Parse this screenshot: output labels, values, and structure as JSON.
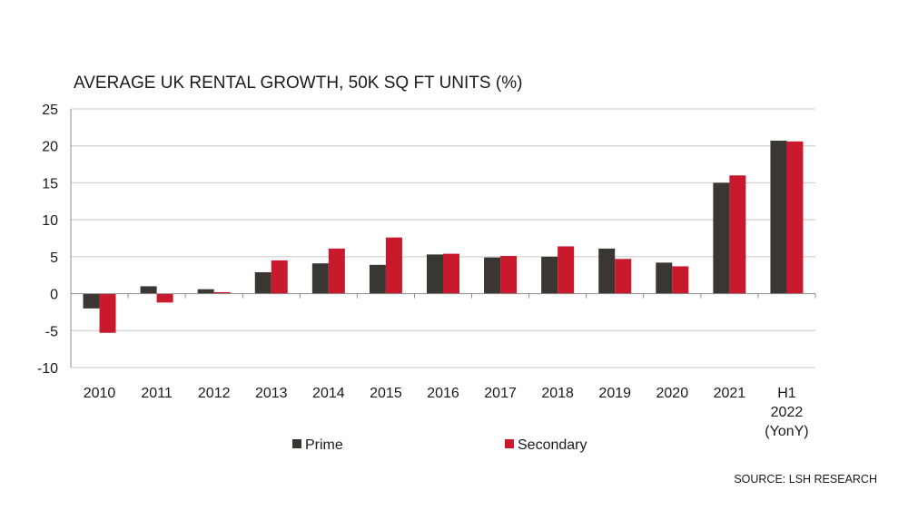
{
  "chart_data": {
    "type": "bar",
    "title": "AVERAGE UK RENTAL GROWTH, 50K SQ FT UNITS (%)",
    "source": "SOURCE: LSH RESEARCH",
    "categories": [
      [
        "2010"
      ],
      [
        "2011"
      ],
      [
        "2012"
      ],
      [
        "2013"
      ],
      [
        "2014"
      ],
      [
        "2015"
      ],
      [
        "2016"
      ],
      [
        "2017"
      ],
      [
        "2018"
      ],
      [
        "2019"
      ],
      [
        "2020"
      ],
      [
        "2021"
      ],
      [
        "H1",
        "2022",
        "(YonY)"
      ]
    ],
    "series": [
      {
        "name": "Prime",
        "color": "#3a3632",
        "values": [
          -2.0,
          1.0,
          0.6,
          2.9,
          4.1,
          3.9,
          5.3,
          4.9,
          5.0,
          6.1,
          4.2,
          15.0,
          20.7
        ]
      },
      {
        "name": "Secondary",
        "color": "#c8192d",
        "values": [
          -5.3,
          -1.2,
          0.2,
          4.5,
          6.1,
          7.6,
          5.4,
          5.1,
          6.4,
          4.7,
          3.7,
          16.0,
          20.6
        ]
      }
    ],
    "ylim": [
      -10,
      25
    ],
    "yticks": [
      -10,
      -5,
      0,
      5,
      10,
      15,
      20,
      25
    ],
    "ytick_labels": [
      "-10",
      "-5",
      "0",
      "5",
      "10",
      "15",
      "20",
      "25"
    ],
    "grid": true,
    "legend": "bottom"
  }
}
